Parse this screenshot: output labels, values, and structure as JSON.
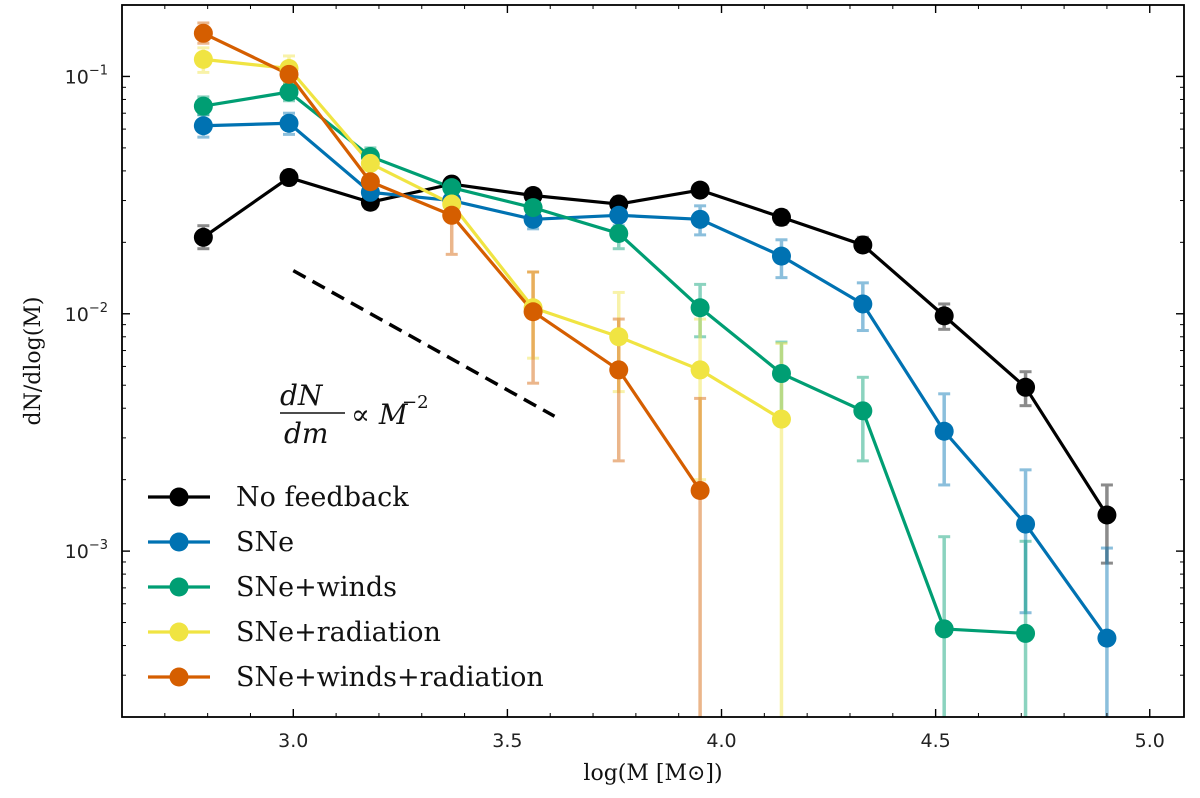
{
  "chart_data": {
    "type": "line",
    "title": "",
    "xlabel": "log(M [M⊙])",
    "ylabel": "dN/dlog(M)",
    "xscale": "linear",
    "yscale": "log",
    "xlim": [
      2.6,
      5.08
    ],
    "ylim": [
      0.0002,
      0.2
    ],
    "x_ticks": [
      3.0,
      3.5,
      4.0,
      4.5,
      5.0
    ],
    "x_tick_labels": [
      "3.0",
      "3.5",
      "4.0",
      "4.5",
      "5.0"
    ],
    "y_ticks": [
      {
        "value": 0.001,
        "base": "10",
        "exp": "−3"
      },
      {
        "value": 0.01,
        "base": "10",
        "exp": "−2"
      },
      {
        "value": 0.1,
        "base": "10",
        "exp": "−1"
      }
    ],
    "legend_position": "lower-left",
    "annotation": {
      "numerator": "dN",
      "denominator": "dm",
      "relation": "∝ M",
      "exponent": "−2",
      "slope_line": {
        "x": [
          3.0,
          3.61
        ],
        "y": [
          0.0152,
          0.0037
        ],
        "style": "dashed"
      }
    },
    "series": [
      {
        "name": "No feedback",
        "color": "#000000",
        "x": [
          2.79,
          2.99,
          3.18,
          3.37,
          3.56,
          3.76,
          3.95,
          4.14,
          4.33,
          4.52,
          4.71,
          4.9
        ],
        "y": [
          0.021,
          0.0375,
          0.0295,
          0.0352,
          0.0315,
          0.029,
          0.0332,
          0.0255,
          0.0195,
          0.0098,
          0.0049,
          0.00142
        ],
        "err_low": [
          0.0188,
          0.0352,
          0.0277,
          0.0333,
          0.0297,
          0.0272,
          0.0314,
          0.0238,
          0.0183,
          0.0086,
          0.0041,
          0.00089
        ],
        "err_high": [
          0.0235,
          0.04,
          0.0315,
          0.0372,
          0.0335,
          0.031,
          0.0352,
          0.0272,
          0.021,
          0.011,
          0.0057,
          0.0019
        ]
      },
      {
        "name": "SNe",
        "color": "#0072B2",
        "x": [
          2.79,
          2.99,
          3.18,
          3.37,
          3.56,
          3.76,
          3.95,
          4.14,
          4.33,
          4.52,
          4.71,
          4.9
        ],
        "y": [
          0.062,
          0.0635,
          0.0325,
          0.03,
          0.025,
          0.026,
          0.025,
          0.0175,
          0.011,
          0.0032,
          0.0013,
          0.00043
        ],
        "err_low": [
          0.0555,
          0.057,
          0.0295,
          0.0275,
          0.0228,
          0.0235,
          0.0215,
          0.0142,
          0.0085,
          0.0019,
          0.00055,
          0.00012
        ],
        "err_high": [
          0.069,
          0.07,
          0.0355,
          0.0325,
          0.0272,
          0.0285,
          0.0285,
          0.0205,
          0.0135,
          0.0046,
          0.0022,
          0.00103
        ]
      },
      {
        "name": "SNe+winds",
        "color": "#009E73",
        "x": [
          2.79,
          2.99,
          3.18,
          3.37,
          3.56,
          3.76,
          3.95,
          4.14,
          4.33,
          4.52,
          4.71
        ],
        "y": [
          0.075,
          0.086,
          0.046,
          0.034,
          0.028,
          0.0218,
          0.0106,
          0.0056,
          0.0039,
          0.00047,
          0.00045
        ],
        "err_low": [
          0.069,
          0.079,
          0.042,
          0.031,
          0.025,
          0.0188,
          0.008,
          0.0036,
          0.0024,
          0.0001,
          0.0001
        ],
        "err_high": [
          0.082,
          0.093,
          0.05,
          0.037,
          0.031,
          0.025,
          0.0133,
          0.0076,
          0.0054,
          0.00115,
          0.0011
        ]
      },
      {
        "name": "SNe+radiation",
        "color": "#F0E442",
        "x": [
          2.79,
          2.99,
          3.18,
          3.37,
          3.56,
          3.76,
          3.95,
          4.14
        ],
        "y": [
          0.118,
          0.108,
          0.043,
          0.029,
          0.0106,
          0.008,
          0.0058,
          0.0036
        ],
        "err_low": [
          0.104,
          0.095,
          0.038,
          0.025,
          0.0065,
          0.0047,
          0.002,
          0.0001
        ],
        "err_high": [
          0.132,
          0.122,
          0.049,
          0.034,
          0.015,
          0.0123,
          0.0095,
          0.0075
        ]
      },
      {
        "name": "SNe+winds+radiation",
        "color": "#D55E00",
        "x": [
          2.79,
          2.99,
          3.18,
          3.37,
          3.56,
          3.76,
          3.95
        ],
        "y": [
          0.152,
          0.102,
          0.036,
          0.026,
          0.0102,
          0.0058,
          0.0018
        ],
        "err_low": [
          0.138,
          0.092,
          0.029,
          0.0178,
          0.0051,
          0.0024,
          0.0001
        ],
        "err_high": [
          0.168,
          0.114,
          0.043,
          0.0345,
          0.015,
          0.0095,
          0.0044
        ]
      }
    ]
  }
}
